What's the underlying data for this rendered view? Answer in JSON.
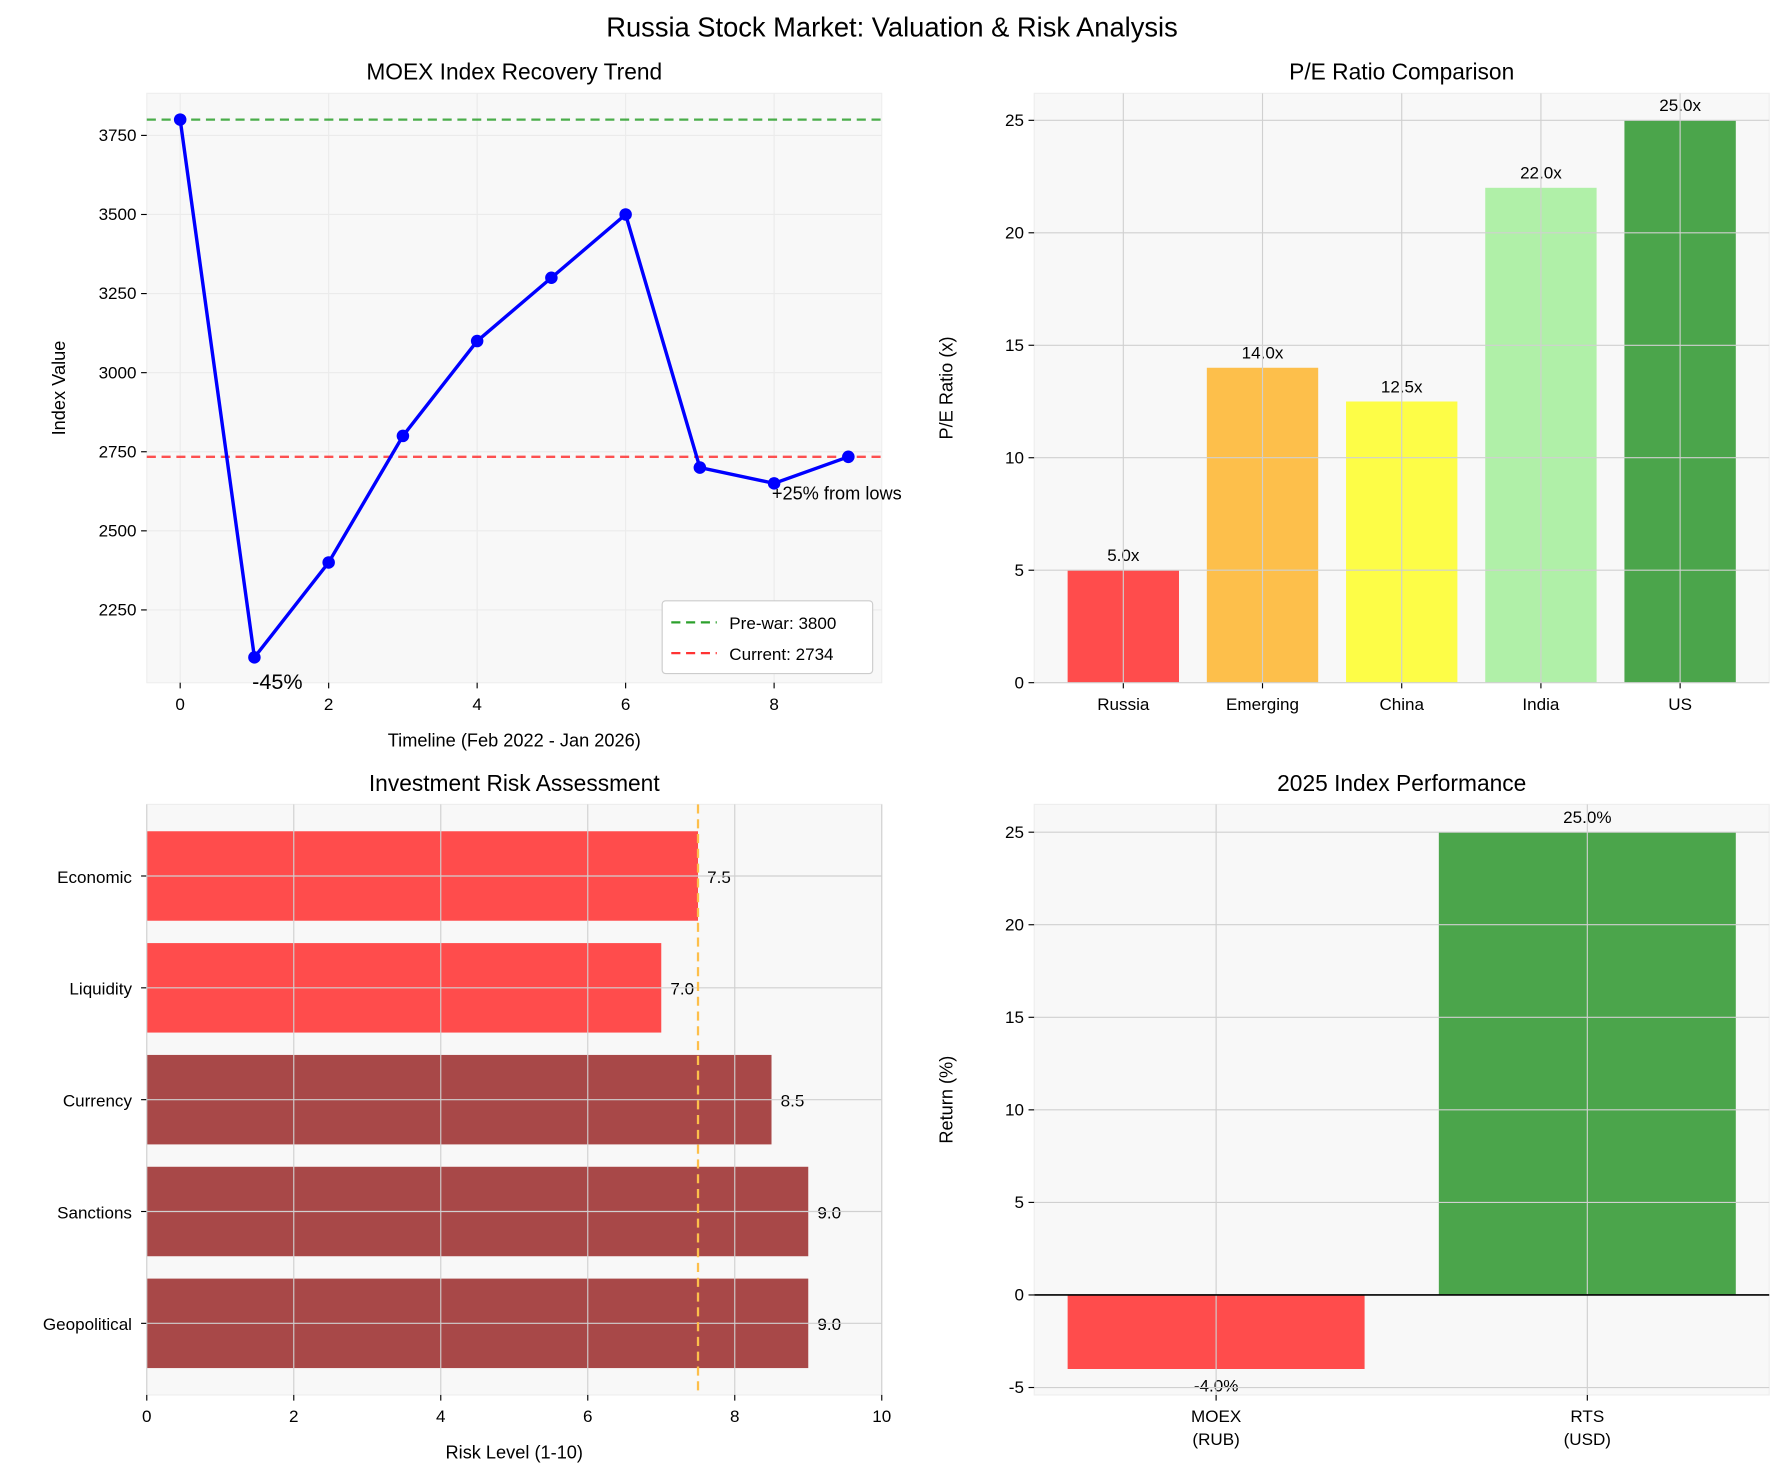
{
  "title": "Russia Stock Market: Valuation & Risk Analysis",
  "chart_data": [
    {
      "type": "line",
      "title": "MOEX Index Recovery Trend",
      "xlabel": "Timeline (Feb 2022 - Jan 2026)",
      "ylabel": "Index Value",
      "x": [
        0,
        1,
        2,
        3,
        4,
        5,
        6,
        7,
        8,
        9
      ],
      "y": [
        3800,
        2100,
        2400,
        2800,
        3100,
        3300,
        3500,
        2700,
        2650,
        2734
      ],
      "xlim": [
        -0.45,
        9.45
      ],
      "ylim": [
        2020,
        3883
      ],
      "xticks": [
        0,
        2,
        4,
        6,
        8
      ],
      "yticks": [
        2250,
        2500,
        2750,
        3000,
        3250,
        3500,
        3750
      ],
      "grid": true,
      "line_color": "#0000ff",
      "hlines": [
        {
          "value": 3800,
          "label": "Pre-war: 3800",
          "color": "#2ca02c"
        },
        {
          "value": 2734,
          "label": "Current: 2734",
          "color": "#ff3333"
        }
      ],
      "legend": "lower-right",
      "annotations": [
        {
          "text": "-45%",
          "x": 1,
          "y": 2100,
          "color": "#ff0000"
        },
        {
          "text": "+25% from lows",
          "x": 8,
          "y": 2650,
          "color": "#008000"
        }
      ]
    },
    {
      "type": "bar",
      "title": "P/E Ratio Comparison",
      "xlabel": "",
      "ylabel": "P/E Ratio (x)",
      "categories": [
        "Russia",
        "Emerging",
        "China",
        "India",
        "US"
      ],
      "values": [
        5.0,
        14.0,
        12.5,
        22.0,
        25.0
      ],
      "data_labels": [
        "5.0x",
        "14.0x",
        "12.5x",
        "22.0x",
        "25.0x"
      ],
      "colors": [
        "#ff4c4c",
        "#fdbf4b",
        "#fdfd47",
        "#b0f0a8",
        "#4ba54b"
      ],
      "ylim": [
        0,
        26.2
      ],
      "yticks": [
        0,
        5,
        10,
        15,
        20,
        25
      ],
      "grid": true
    },
    {
      "type": "bar",
      "orientation": "horizontal",
      "title": "Investment Risk Assessment",
      "xlabel": "Risk Level (1-10)",
      "ylabel": "",
      "categories": [
        "Geopolitical",
        "Sanctions",
        "Currency",
        "Liquidity",
        "Economic"
      ],
      "values": [
        9.0,
        9.0,
        8.5,
        7.0,
        7.5
      ],
      "data_labels": [
        "9.0",
        "9.0",
        "8.5",
        "7.0",
        "7.5"
      ],
      "colors": [
        "#a84848",
        "#a84848",
        "#a84848",
        "#ff4c4c",
        "#ff4c4c"
      ],
      "xlim": [
        0,
        10
      ],
      "xticks": [
        0,
        2,
        4,
        6,
        8,
        10
      ],
      "vline": {
        "value": 7.5,
        "color": "#fdbf4b"
      },
      "grid": true
    },
    {
      "type": "bar",
      "title": "2025 Index Performance",
      "xlabel": "",
      "ylabel": "Return (%)",
      "categories": [
        [
          "MOEX",
          "(RUB)"
        ],
        [
          "RTS",
          "(USD)"
        ]
      ],
      "values": [
        -4.0,
        25.0
      ],
      "data_labels": [
        "-4.0%",
        "25.0%"
      ],
      "colors": [
        "#ff4c4c",
        "#4ba54b"
      ],
      "ylim": [
        -5.4,
        26.5
      ],
      "yticks": [
        -5,
        0,
        5,
        10,
        15,
        20,
        25
      ],
      "grid": true
    }
  ]
}
